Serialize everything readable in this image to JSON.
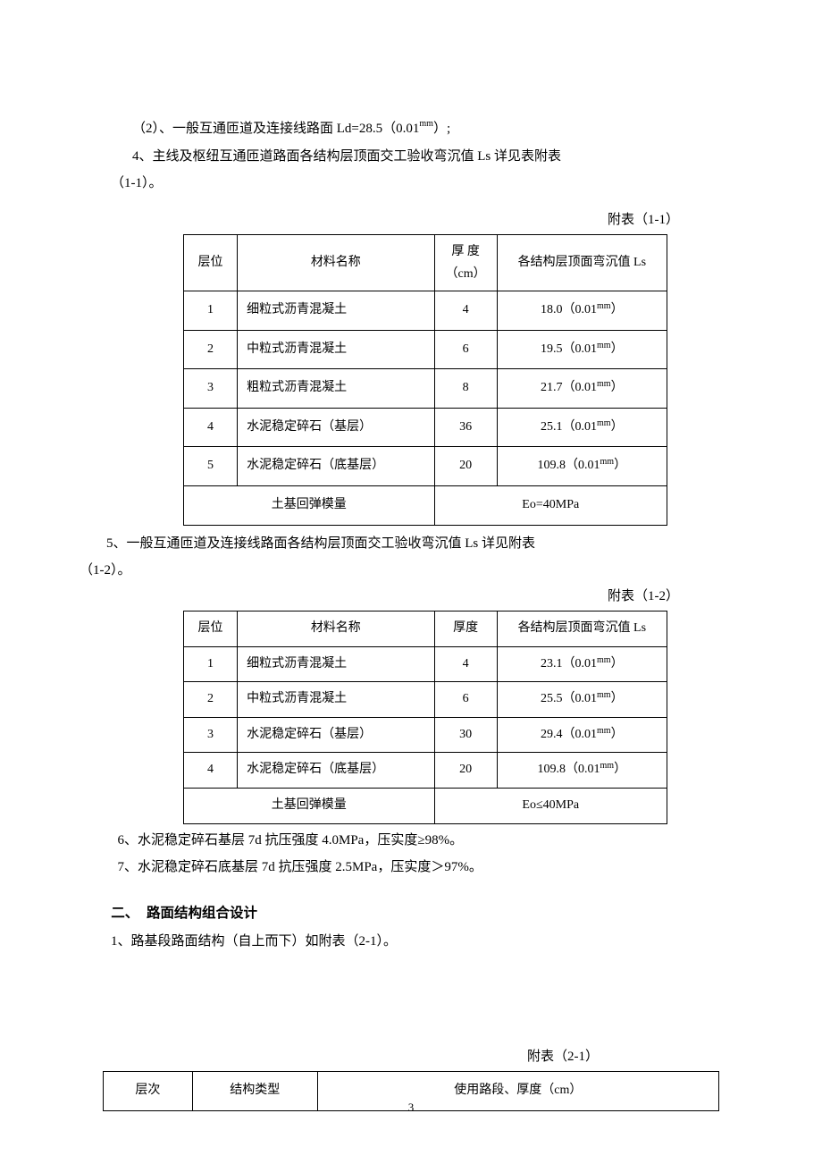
{
  "paragraphs": {
    "p1": "（2）、一般互通匝道及连接线路面 Ld=28.5（0.01",
    "p1_unit": "mm",
    "p1_tail": "）;",
    "p2": "4、主线及枢纽互通匝道路面各结构层顶面交工验收弯沉值 Ls 详见表附表",
    "p2b": "（1-1）。",
    "p3": "5、一般互通匝道及连接线路面各结构层顶面交工验收弯沉值 Ls 详见附表",
    "p3b": "（1-2）。",
    "p4": "6、水泥稳定碎石基层 7d 抗压强度 4.0MPa，压实度≥98%。",
    "p5": "7、水泥稳定碎石底基层 7d 抗压强度 2.5MPa，压实度＞97%。",
    "p6": "1、路基段路面结构（自上而下）如附表（2-1）。"
  },
  "table1": {
    "label": "附表（1-1）",
    "headers": {
      "layer": "层位",
      "material": "材料名称",
      "thick_top": "厚 度",
      "thick_bot": "（cm）",
      "value": "各结构层顶面弯沉值 Ls"
    },
    "rows": [
      {
        "layer": "1",
        "material": "细粒式沥青混凝土",
        "thick": "4",
        "value": "18.0（0.01",
        "unit": "mm",
        "tail": "）"
      },
      {
        "layer": "2",
        "material": "中粒式沥青混凝土",
        "thick": "6",
        "value": "19.5（0.01",
        "unit": "mm",
        "tail": "）"
      },
      {
        "layer": "3",
        "material": "粗粒式沥青混凝土",
        "thick": "8",
        "value": "21.7（0.01",
        "unit": "mm",
        "tail": "）"
      },
      {
        "layer": "4",
        "material": "水泥稳定碎石（基层）",
        "thick": "36",
        "value": "25.1（0.01",
        "unit": "mm",
        "tail": "）"
      },
      {
        "layer": "5",
        "material": "水泥稳定碎石（底基层）",
        "thick": "20",
        "value": "109.8（0.01",
        "unit": "mm",
        "tail": "）"
      }
    ],
    "footer": {
      "left": "土基回弹模量",
      "right": "Eo=40MPa"
    }
  },
  "table2": {
    "label": "附表（1-2）",
    "headers": {
      "layer": "层位",
      "material": "材料名称",
      "thick": "厚度",
      "value": "各结构层顶面弯沉值 Ls"
    },
    "rows": [
      {
        "layer": "1",
        "material": "细粒式沥青混凝土",
        "thick": "4",
        "value": "23.1（0.01",
        "unit": "mm",
        "tail": "）"
      },
      {
        "layer": "2",
        "material": "中粒式沥青混凝土",
        "thick": "6",
        "value": "25.5（0.01",
        "unit": "mm",
        "tail": "）"
      },
      {
        "layer": "3",
        "material": "水泥稳定碎石（基层）",
        "thick": "30",
        "value": "29.4（0.01",
        "unit": "mm",
        "tail": "）"
      },
      {
        "layer": "4",
        "material": "水泥稳定碎石（底基层）",
        "thick": "20",
        "value": "109.8（0.01",
        "unit": "mm",
        "tail": "）"
      }
    ],
    "footer": {
      "left": "土基回弹模量",
      "right": "Eo≤40MPa"
    }
  },
  "section2": {
    "heading_num": "二、",
    "heading_text": "路面结构组合设计"
  },
  "table3": {
    "label": "附表（2-1）",
    "headers": {
      "layer": "层次",
      "type": "结构类型",
      "usage": "使用路段、厚度（cm）"
    }
  },
  "page_number": "3"
}
